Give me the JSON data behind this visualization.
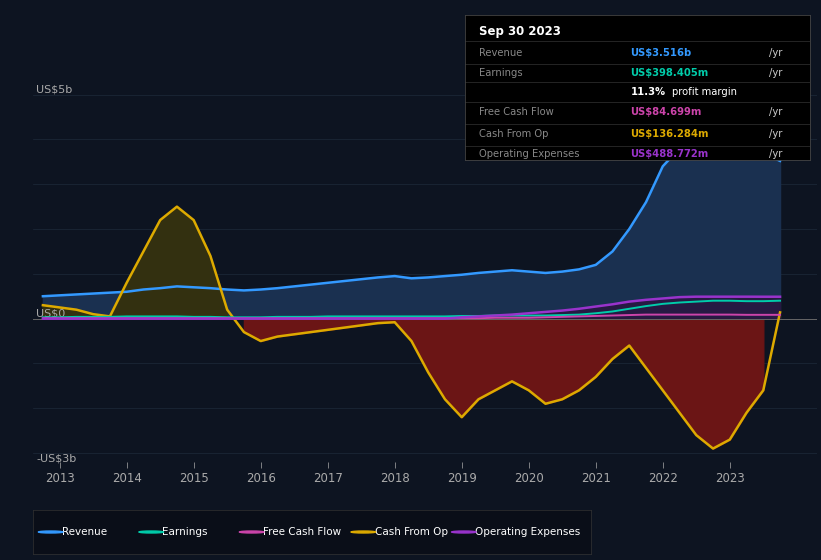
{
  "bg_color": "#0d1421",
  "plot_bg_color": "#0d1421",
  "ylim": [
    -3.2,
    5.8
  ],
  "xlim": [
    2012.6,
    2024.3
  ],
  "xticks": [
    2013,
    2014,
    2015,
    2016,
    2017,
    2018,
    2019,
    2020,
    2021,
    2022,
    2023
  ],
  "ylabel_top": "US$5b",
  "ylabel_zero": "US$0",
  "ylabel_bottom": "-US$3b",
  "colors": {
    "revenue": "#3399ff",
    "earnings": "#00ccaa",
    "free_cash_flow": "#cc44aa",
    "cash_from_op": "#ddaa00",
    "op_expenses": "#9933cc"
  },
  "fill_revenue": "#1a3050",
  "fill_cash_pos": "#333010",
  "fill_cash_neg": "#6b1515",
  "fill_opex": "#2a1540",
  "info_box": {
    "date": "Sep 30 2023",
    "rows": [
      {
        "label": "Revenue",
        "value": "US$3.516b",
        "suffix": " /yr",
        "color": "#3399ff"
      },
      {
        "label": "Earnings",
        "value": "US$398.405m",
        "suffix": " /yr",
        "color": "#00ccaa"
      },
      {
        "label": "",
        "value": "11.3%",
        "suffix": " profit margin",
        "color": "white"
      },
      {
        "label": "Free Cash Flow",
        "value": "US$84.699m",
        "suffix": " /yr",
        "color": "#cc44aa"
      },
      {
        "label": "Cash From Op",
        "value": "US$136.284m",
        "suffix": " /yr",
        "color": "#ddaa00"
      },
      {
        "label": "Operating Expenses",
        "value": "US$488.772m",
        "suffix": " /yr",
        "color": "#9933cc"
      }
    ]
  },
  "legend": [
    {
      "label": "Revenue",
      "color": "#3399ff"
    },
    {
      "label": "Earnings",
      "color": "#00ccaa"
    },
    {
      "label": "Free Cash Flow",
      "color": "#cc44aa"
    },
    {
      "label": "Cash From Op",
      "color": "#ddaa00"
    },
    {
      "label": "Operating Expenses",
      "color": "#9933cc"
    }
  ],
  "x": [
    2012.75,
    2013.0,
    2013.25,
    2013.5,
    2013.75,
    2014.0,
    2014.25,
    2014.5,
    2014.75,
    2015.0,
    2015.25,
    2015.5,
    2015.75,
    2016.0,
    2016.25,
    2016.5,
    2016.75,
    2017.0,
    2017.25,
    2017.5,
    2017.75,
    2018.0,
    2018.25,
    2018.5,
    2018.75,
    2019.0,
    2019.25,
    2019.5,
    2019.75,
    2020.0,
    2020.25,
    2020.5,
    2020.75,
    2021.0,
    2021.25,
    2021.5,
    2021.75,
    2022.0,
    2022.25,
    2022.5,
    2022.75,
    2023.0,
    2023.25,
    2023.5,
    2023.75
  ],
  "revenue": [
    0.5,
    0.52,
    0.54,
    0.56,
    0.58,
    0.6,
    0.65,
    0.68,
    0.72,
    0.7,
    0.68,
    0.65,
    0.63,
    0.65,
    0.68,
    0.72,
    0.76,
    0.8,
    0.84,
    0.88,
    0.92,
    0.95,
    0.9,
    0.92,
    0.95,
    0.98,
    1.02,
    1.05,
    1.08,
    1.05,
    1.02,
    1.05,
    1.1,
    1.2,
    1.5,
    2.0,
    2.6,
    3.4,
    3.8,
    4.2,
    4.6,
    4.5,
    4.0,
    3.7,
    3.52
  ],
  "earnings": [
    0.03,
    0.03,
    0.04,
    0.04,
    0.04,
    0.05,
    0.05,
    0.05,
    0.05,
    0.04,
    0.04,
    0.03,
    0.03,
    0.03,
    0.04,
    0.04,
    0.04,
    0.05,
    0.05,
    0.05,
    0.05,
    0.05,
    0.05,
    0.05,
    0.05,
    0.06,
    0.06,
    0.07,
    0.07,
    0.07,
    0.07,
    0.08,
    0.09,
    0.12,
    0.16,
    0.22,
    0.28,
    0.33,
    0.36,
    0.38,
    0.4,
    0.4,
    0.39,
    0.39,
    0.4
  ],
  "free_cash_flow": [
    0.01,
    0.01,
    0.01,
    0.01,
    0.01,
    0.01,
    0.01,
    0.01,
    0.01,
    0.01,
    0.01,
    0.01,
    0.01,
    0.01,
    0.01,
    0.01,
    0.01,
    0.01,
    0.01,
    0.01,
    0.01,
    0.01,
    0.01,
    0.01,
    0.01,
    0.01,
    0.01,
    0.02,
    0.02,
    0.02,
    0.03,
    0.04,
    0.05,
    0.06,
    0.07,
    0.08,
    0.09,
    0.09,
    0.09,
    0.09,
    0.09,
    0.09,
    0.085,
    0.085,
    0.085
  ],
  "cash_from_op": [
    0.3,
    0.25,
    0.2,
    0.1,
    0.05,
    0.8,
    1.5,
    2.2,
    2.5,
    2.2,
    1.4,
    0.2,
    -0.3,
    -0.5,
    -0.4,
    -0.35,
    -0.3,
    -0.25,
    -0.2,
    -0.15,
    -0.1,
    -0.08,
    -0.5,
    -1.2,
    -1.8,
    -2.2,
    -1.8,
    -1.6,
    -1.4,
    -1.6,
    -1.9,
    -1.8,
    -1.6,
    -1.3,
    -0.9,
    -0.6,
    -1.1,
    -1.6,
    -2.1,
    -2.6,
    -2.9,
    -2.7,
    -2.1,
    -1.6,
    0.14
  ],
  "op_expenses": [
    0.0,
    0.0,
    0.0,
    0.0,
    0.0,
    0.0,
    0.0,
    0.0,
    0.0,
    0.0,
    0.0,
    0.0,
    0.0,
    0.0,
    0.0,
    0.0,
    0.0,
    0.0,
    0.0,
    0.0,
    0.0,
    0.0,
    0.0,
    0.0,
    0.0,
    0.03,
    0.05,
    0.07,
    0.09,
    0.12,
    0.15,
    0.18,
    0.22,
    0.27,
    0.32,
    0.38,
    0.42,
    0.45,
    0.48,
    0.49,
    0.49,
    0.49,
    0.49,
    0.489,
    0.489
  ]
}
